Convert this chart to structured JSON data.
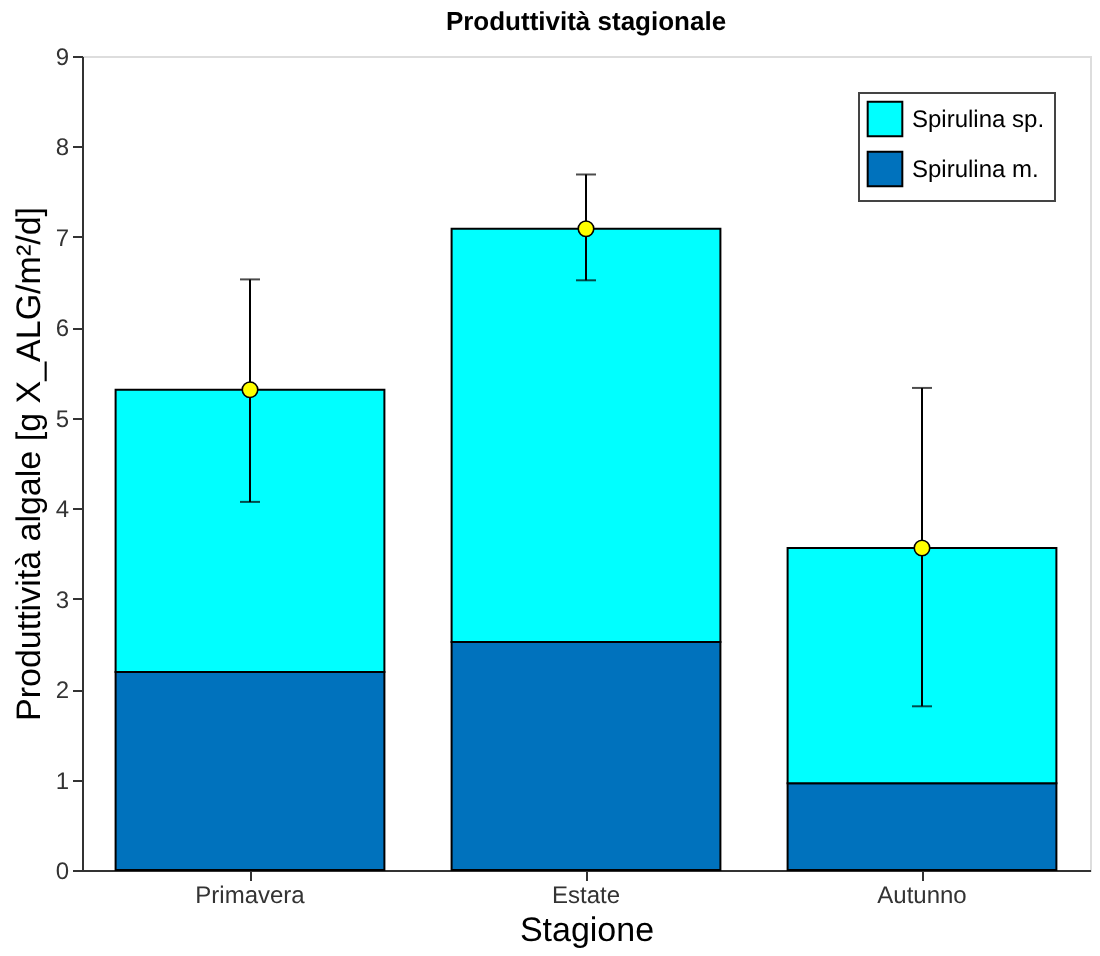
{
  "chart_data": {
    "type": "bar",
    "title": "Produttività stagionale",
    "xlabel": "Stagione",
    "ylabel": "Produttività algale [g X_ALG/m²/d]",
    "categories": [
      "Primavera",
      "Estate",
      "Autunno"
    ],
    "stacked": true,
    "ylim": [
      0,
      9
    ],
    "yticks": [
      0,
      1,
      2,
      3,
      4,
      5,
      6,
      7,
      8,
      9
    ],
    "grid": false,
    "legend": "top right",
    "series": [
      {
        "name": "Spirulina m.",
        "color": "#0072bd",
        "values": [
          2.19,
          2.52,
          0.96
        ]
      },
      {
        "name": "Spirulina sp.",
        "color": "#00ffff",
        "values": [
          3.12,
          4.57,
          2.6
        ]
      },
      {
        "type": "scatter",
        "x": [
          "Primavera",
          "Estate",
          "Autunno"
        ],
        "color": "#ffff00",
        "marker": "circle",
        "values": [
          5.31,
          7.09,
          3.56
        ],
        "errors": [
          [
            4.07,
            6.53
          ],
          [
            6.52,
            7.69
          ],
          [
            1.81,
            5.33
          ]
        ]
      }
    ]
  }
}
